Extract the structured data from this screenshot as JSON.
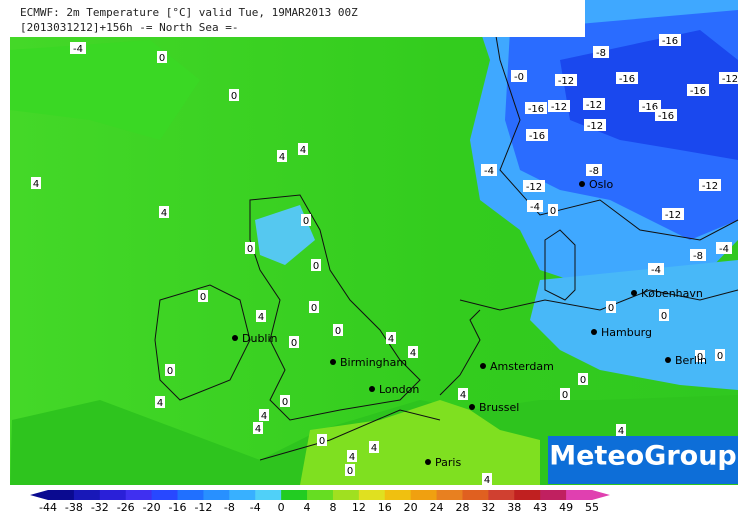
{
  "header": {
    "line1": "ECMWF: 2m Temperature [°C] valid Tue, 19MAR2013 00Z",
    "line2": "[2013031212]+156h  -= North Sea =-"
  },
  "cities": [
    "Dublin",
    "Birmingham",
    "London",
    "Amsterdam",
    "Brussel",
    "Paris",
    "Oslo",
    "København",
    "Hamburg",
    "Berlin"
  ],
  "contour_labels": [
    "-4",
    "0",
    "0",
    "4",
    "4",
    "4",
    "4",
    "0",
    "0",
    "0",
    "0",
    "4",
    "0",
    "0",
    "0",
    "4",
    "4",
    "0",
    "4",
    "0",
    "4",
    "4",
    "0",
    "4",
    "4",
    "0",
    "4",
    "4",
    "0",
    "0",
    "4",
    "0",
    "0",
    "0",
    "0",
    "-4",
    "-8",
    "-4",
    "-12",
    "-12",
    "-4",
    "0",
    "-4",
    "-8",
    "-12",
    "-16",
    "-16",
    "-12",
    "-12",
    "-12",
    "-12",
    "-16",
    "-16",
    "-16",
    "-16",
    "-16",
    "-8",
    "-0",
    "-12"
  ],
  "colorbar": {
    "ticks": [
      -44,
      -38,
      -32,
      -26,
      -20,
      -16,
      -12,
      -8,
      -4,
      0,
      4,
      8,
      12,
      16,
      20,
      24,
      28,
      32,
      38,
      43,
      49,
      55
    ],
    "colors": [
      "#0a0a90",
      "#1818b8",
      "#2a20d8",
      "#4030f0",
      "#2848ff",
      "#2070ff",
      "#2890ff",
      "#38b0ff",
      "#50d0f8",
      "#22cc22",
      "#66dd22",
      "#a0e020",
      "#e0e020",
      "#f0c010",
      "#f0a010",
      "#e88020",
      "#e06020",
      "#d04030",
      "#c02020",
      "#c02060",
      "#e040b0"
    ]
  },
  "logo": "MeteoGroup"
}
